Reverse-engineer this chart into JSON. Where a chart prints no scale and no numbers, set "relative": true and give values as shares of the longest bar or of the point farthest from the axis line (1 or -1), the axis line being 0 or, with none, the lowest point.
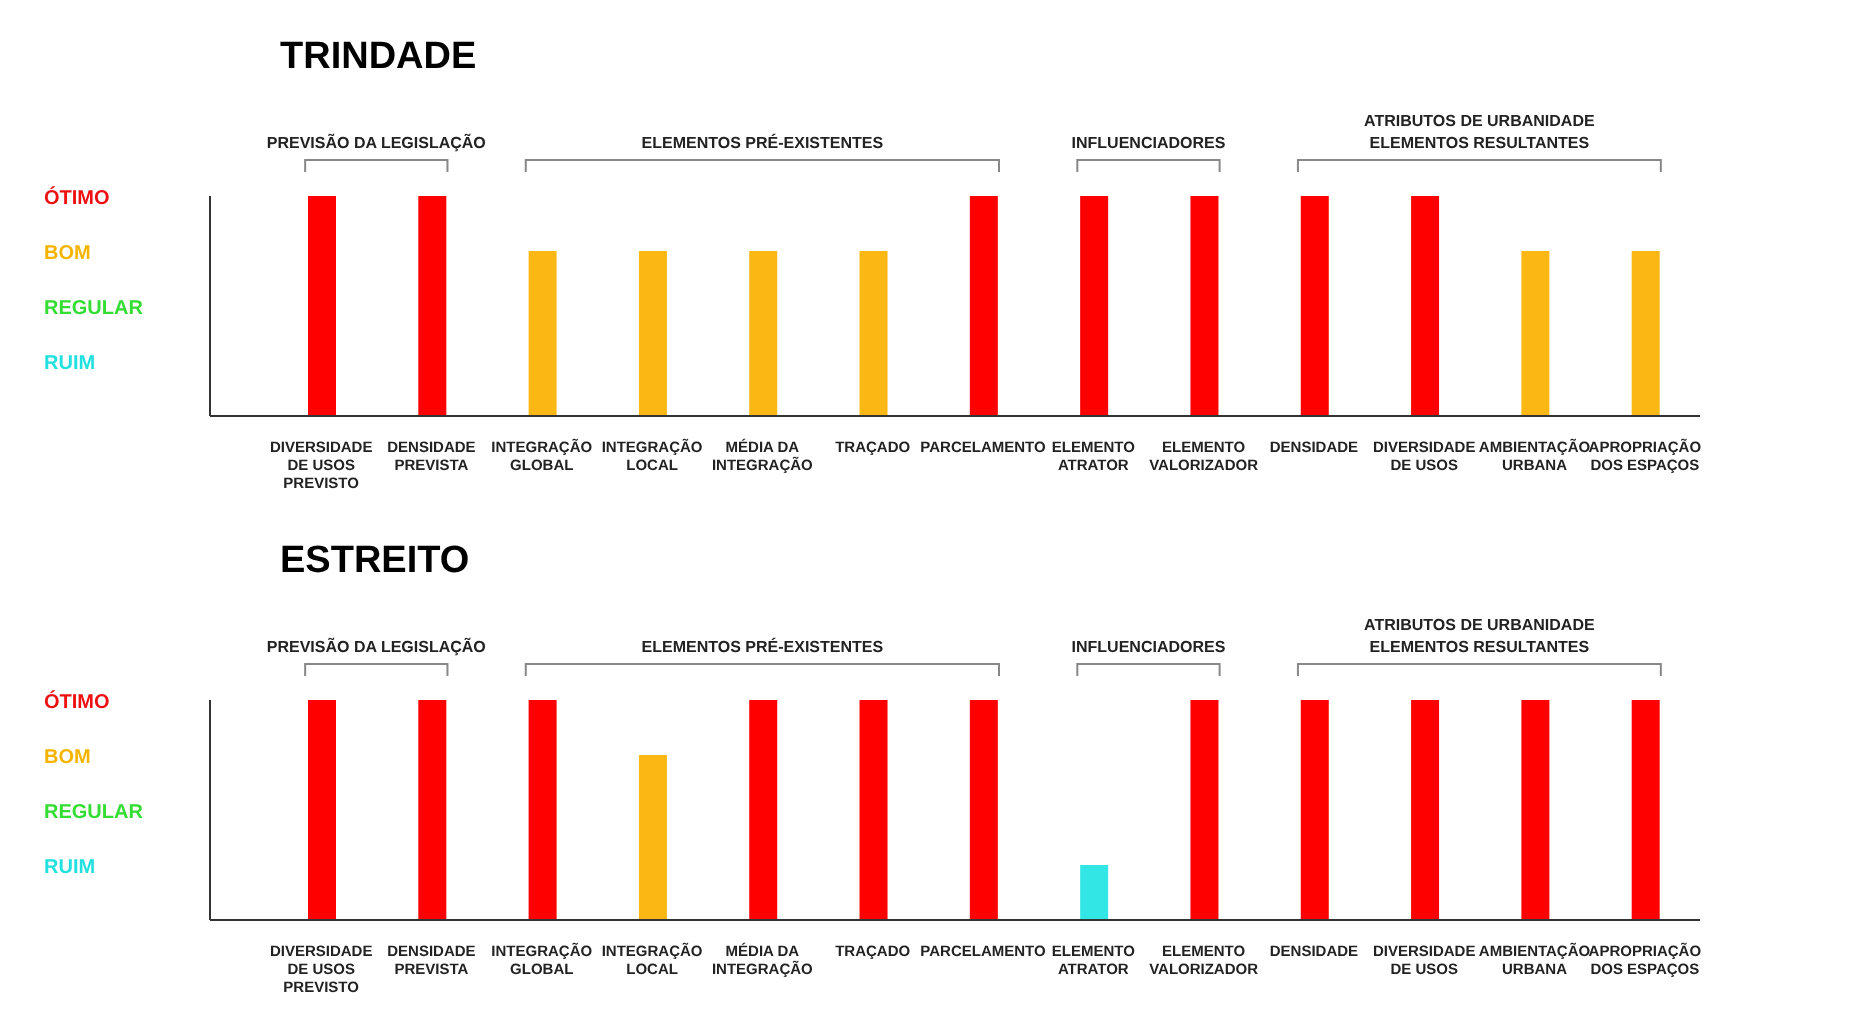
{
  "chart_data": [
    {
      "type": "bar",
      "title": "TRINDADE",
      "relative": true,
      "categories": [
        "DIVERSIDADE\nDE USOS\nPREVISTO",
        "DENSIDADE\nPREVISTA",
        "INTEGRAÇÃO\nGLOBAL",
        "INTEGRAÇÃO\nLOCAL",
        "MÉDIA DA\nINTEGRAÇÃO",
        "TRAÇADO",
        "PARCELAMENTO",
        "ELEMENTO\nATRATOR",
        "ELEMENTO\nVALORIZADOR",
        "DENSIDADE",
        "DIVERSIDADE\nDE USOS",
        "AMBIENTAÇÃO\nURBANA",
        "APROPRIAÇÃO\nDOS ESPAÇOS"
      ],
      "values": [
        1,
        1,
        0.75,
        0.75,
        0.75,
        0.75,
        1,
        1,
        1,
        1,
        1,
        0.75,
        0.75
      ],
      "colors": [
        "#ff0000",
        "#ff0000",
        "#fbb714",
        "#fbb714",
        "#fbb714",
        "#fbb714",
        "#ff0000",
        "#ff0000",
        "#ff0000",
        "#ff0000",
        "#ff0000",
        "#fbb714",
        "#fbb714"
      ],
      "annotations": [
        "ÓTIMO",
        "BOM",
        "REGULAR",
        "RUIM",
        "PREVISÃO DA LEGISLAÇÃO",
        "ELEMENTOS PRÉ-EXISTENTES",
        "INFLUENCIADORES",
        "ATRIBUTOS DE URBANIDADE\nELEMENTOS RESULTANTES"
      ]
    },
    {
      "type": "bar",
      "title": "ESTREITO",
      "relative": true,
      "categories": [
        "DIVERSIDADE\nDE USOS\nPREVISTO",
        "DENSIDADE\nPREVISTA",
        "INTEGRAÇÃO\nGLOBAL",
        "INTEGRAÇÃO\nLOCAL",
        "MÉDIA DA\nINTEGRAÇÃO",
        "TRAÇADO",
        "PARCELAMENTO",
        "ELEMENTO\nATRATOR",
        "ELEMENTO\nVALORIZADOR",
        "DENSIDADE",
        "DIVERSIDADE\nDE USOS",
        "AMBIENTAÇÃO\nURBANA",
        "APROPRIAÇÃO\nDOS ESPAÇOS"
      ],
      "values": [
        1,
        1,
        1,
        0.75,
        1,
        1,
        1,
        0.25,
        1,
        1,
        1,
        1,
        1
      ],
      "colors": [
        "#ff0000",
        "#ff0000",
        "#ff0000",
        "#fbb714",
        "#ff0000",
        "#ff0000",
        "#ff0000",
        "#33e6e6",
        "#ff0000",
        "#ff0000",
        "#ff0000",
        "#ff0000",
        "#ff0000"
      ],
      "annotations": [
        "ÓTIMO",
        "BOM",
        "REGULAR",
        "RUIM",
        "PREVISÃO DA LEGISLAÇÃO",
        "ELEMENTOS PRÉ-EXISTENTES",
        "INFLUENCIADORES",
        "ATRIBUTOS DE URBANIDADE\nELEMENTOS RESULTANTES"
      ]
    }
  ]
}
